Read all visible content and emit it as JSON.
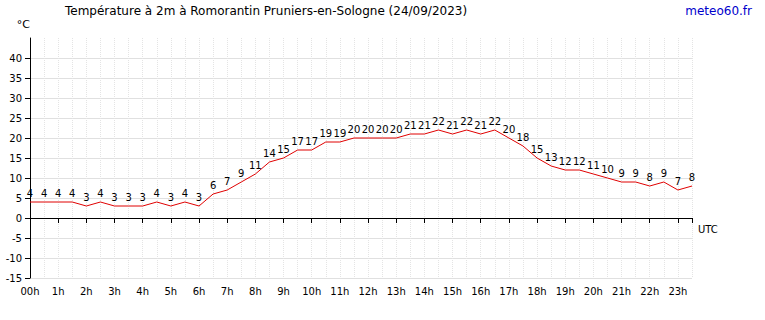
{
  "chart_data": {
    "type": "line",
    "title": "Température à 2m à Romorantin Pruniers-en-Sologne (24/09/2023)",
    "source": "meteo60.fr",
    "y_label": "°C",
    "x_label": "UTC",
    "categories": [
      "00h",
      null,
      "1h",
      null,
      "2h",
      null,
      "3h",
      null,
      "4h",
      null,
      "5h",
      null,
      "6h",
      null,
      "7h",
      null,
      "8h",
      null,
      "9h",
      null,
      "10h",
      null,
      "11h",
      null,
      "12h",
      null,
      "13h",
      null,
      "14h",
      null,
      "15h",
      null,
      "16h",
      null,
      "17h",
      null,
      "18h",
      null,
      "19h",
      null,
      "20h",
      null,
      "21h",
      null,
      "22h",
      null,
      "23h",
      null
    ],
    "values": [
      4,
      4,
      4,
      4,
      3,
      4,
      3,
      3,
      3,
      4,
      3,
      4,
      3,
      6,
      7,
      9,
      11,
      14,
      15,
      17,
      17,
      19,
      19,
      20,
      20,
      20,
      20,
      21,
      21,
      22,
      21,
      22,
      21,
      22,
      20,
      18,
      15,
      13,
      12,
      12,
      11,
      10,
      9,
      9,
      8,
      9,
      7,
      8
    ],
    "color": "#e00000",
    "ylim": [
      -15,
      45
    ],
    "yticks": [
      -15,
      -10,
      -5,
      0,
      5,
      10,
      15,
      20,
      25,
      30,
      35,
      40
    ],
    "grid": true,
    "data_labels": true
  }
}
